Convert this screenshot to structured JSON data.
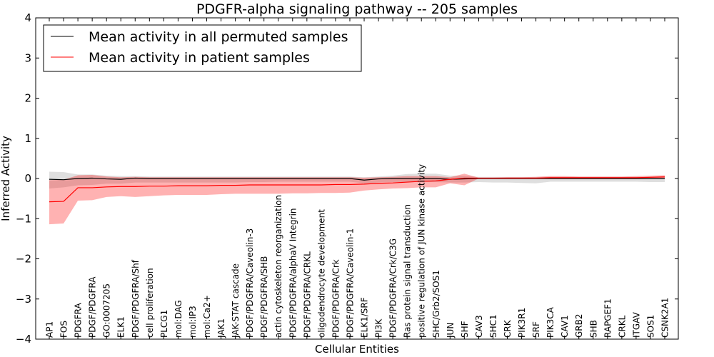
{
  "chart_data": {
    "type": "line",
    "title": "PDGFR-alpha signaling pathway -- 205 samples",
    "xlabel": "Cellular Entities",
    "ylabel": "Inferred Activity",
    "ylim": [
      -4,
      4
    ],
    "yticks": [
      -4,
      -3,
      -2,
      -1,
      0,
      1,
      2,
      3,
      4
    ],
    "ytick_labels": [
      "−4",
      "−3",
      "−2",
      "−1",
      "0",
      "1",
      "2",
      "3",
      "4"
    ],
    "grid": false,
    "legend_position": "top-left",
    "categories": [
      "AP1",
      "FOS",
      "PDGFRA",
      "PDGF/PDGFRA",
      "GO:0007205",
      "ELK1",
      "PDGF/PDGFRA/Shf",
      "cell proliferation",
      "PLCG1",
      "mol:DAG",
      "mol:IP3",
      "mol:Ca2+",
      "JAK1",
      "JAK-STAT cascade",
      "PDGF/PDGFRA/Caveolin-3",
      "PDGF/PDGFRA/SHB",
      "actin cytoskeleton reorganization",
      "PDGF/PDGFRA/alphaV Integrin",
      "PDGF/PDGFRA/CRKL",
      "oligodendrocyte development",
      "PDGF/PDGFRA/Crk",
      "PDGF/PDGFRA/Caveolin-1",
      "ELK1/SRF",
      "PI3K",
      "PDGF/PDGFRA/Crk/C3G",
      "Ras protein signal transduction",
      "positive regulation of JUN kinase activity",
      "SHC/Grb2/SOS1",
      "JUN",
      "SHF",
      "CAV3",
      "SHC1",
      "CRK",
      "PIK3R1",
      "SRF",
      "PIK3CA",
      "CAV1",
      "GRB2",
      "SHB",
      "RAPGEF1",
      "CRKL",
      "ITGAV",
      "SOS1",
      "CSNK2A1"
    ],
    "series": [
      {
        "name": "Mean activity in all permuted samples",
        "color": "#000000",
        "values": [
          -0.02,
          -0.03,
          0.0,
          0.01,
          -0.01,
          -0.02,
          0.01,
          0.0,
          0.0,
          0.0,
          0.0,
          0.0,
          0.0,
          0.0,
          0.0,
          0.0,
          0.0,
          0.0,
          0.0,
          0.0,
          0.0,
          0.0,
          -0.04,
          -0.01,
          0.0,
          0.0,
          0.0,
          0.0,
          -0.02,
          -0.01,
          0.0,
          0.0,
          0.0,
          0.0,
          0.0,
          0.0,
          0.0,
          0.0,
          0.0,
          0.0,
          0.0,
          0.0,
          0.0,
          0.0
        ],
        "band_lower": [
          -0.25,
          -0.22,
          -0.17,
          -0.16,
          -0.13,
          -0.13,
          -0.1,
          -0.1,
          -0.1,
          -0.1,
          -0.1,
          -0.1,
          -0.1,
          -0.1,
          -0.09,
          -0.09,
          -0.08,
          -0.08,
          -0.08,
          -0.08,
          -0.08,
          -0.08,
          -0.12,
          -0.1,
          -0.09,
          -0.09,
          -0.09,
          -0.09,
          -0.1,
          -0.1,
          -0.09,
          -0.1,
          -0.1,
          -0.11,
          -0.12,
          -0.08,
          -0.08,
          -0.08,
          -0.08,
          -0.08,
          -0.08,
          -0.08,
          -0.09,
          -0.09
        ],
        "band_upper": [
          0.17,
          0.16,
          0.1,
          0.1,
          0.07,
          0.06,
          0.06,
          0.05,
          0.05,
          0.05,
          0.05,
          0.05,
          0.05,
          0.05,
          0.05,
          0.05,
          0.05,
          0.05,
          0.05,
          0.05,
          0.05,
          0.05,
          0.03,
          0.05,
          0.07,
          0.11,
          0.12,
          0.12,
          0.07,
          0.07,
          0.04,
          0.04,
          0.04,
          0.04,
          0.04,
          0.04,
          0.04,
          0.04,
          0.04,
          0.04,
          0.04,
          0.04,
          0.04,
          0.04
        ]
      },
      {
        "name": "Mean activity in patient samples",
        "color": "#ff0000",
        "values": [
          -0.58,
          -0.57,
          -0.23,
          -0.23,
          -0.21,
          -0.2,
          -0.2,
          -0.19,
          -0.19,
          -0.18,
          -0.18,
          -0.18,
          -0.17,
          -0.17,
          -0.16,
          -0.16,
          -0.16,
          -0.16,
          -0.16,
          -0.16,
          -0.15,
          -0.15,
          -0.14,
          -0.12,
          -0.11,
          -0.09,
          -0.07,
          -0.06,
          -0.02,
          0.01,
          0.01,
          0.01,
          0.01,
          0.01,
          0.01,
          0.02,
          0.02,
          0.02,
          0.02,
          0.02,
          0.02,
          0.02,
          0.03,
          0.04
        ],
        "band_lower": [
          -1.14,
          -1.12,
          -0.55,
          -0.54,
          -0.46,
          -0.44,
          -0.46,
          -0.44,
          -0.42,
          -0.41,
          -0.41,
          -0.41,
          -0.39,
          -0.38,
          -0.38,
          -0.38,
          -0.38,
          -0.37,
          -0.37,
          -0.36,
          -0.36,
          -0.35,
          -0.3,
          -0.27,
          -0.25,
          -0.24,
          -0.22,
          -0.22,
          -0.12,
          -0.17,
          0.0,
          0.0,
          0.0,
          0.0,
          0.0,
          0.0,
          0.0,
          0.0,
          0.0,
          0.0,
          0.0,
          0.0,
          0.0,
          0.0
        ],
        "band_upper": [
          -0.04,
          -0.03,
          0.08,
          0.09,
          0.05,
          0.03,
          0.04,
          0.03,
          0.03,
          0.03,
          0.03,
          0.03,
          0.03,
          0.03,
          0.03,
          0.03,
          0.03,
          0.03,
          0.03,
          0.03,
          0.03,
          0.03,
          0.02,
          0.03,
          0.04,
          0.06,
          0.06,
          0.06,
          0.03,
          0.12,
          0.02,
          0.02,
          0.03,
          0.03,
          0.04,
          0.06,
          0.06,
          0.05,
          0.05,
          0.05,
          0.05,
          0.06,
          0.07,
          0.08
        ]
      }
    ]
  }
}
